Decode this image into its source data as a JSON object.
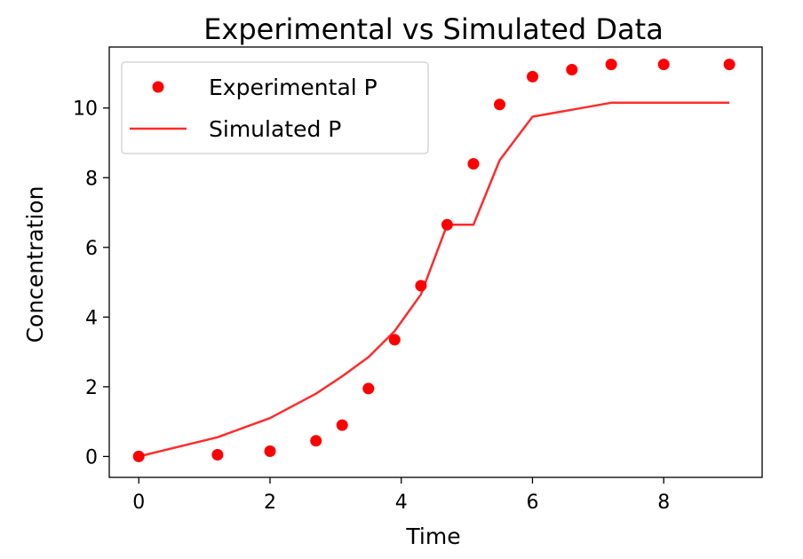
{
  "chart_data": {
    "type": "line",
    "title": "Experimental vs Simulated Data",
    "xlabel": "Time",
    "ylabel": "Concentration",
    "xlim": [
      -0.45,
      9.5
    ],
    "ylim": [
      -0.6,
      11.75
    ],
    "xticks": [
      0,
      2,
      4,
      6,
      8
    ],
    "yticks": [
      0,
      2,
      4,
      6,
      8,
      10
    ],
    "grid": false,
    "legend_position": "upper-left",
    "series": [
      {
        "name": "Experimental P",
        "kind": "scatter",
        "color": "#ff0000",
        "x": [
          0,
          1.2,
          2.0,
          2.7,
          3.1,
          3.5,
          3.9,
          4.3,
          4.7,
          5.1,
          5.5,
          6.0,
          6.6,
          7.2,
          8.0,
          9.0
        ],
        "y": [
          0.0,
          0.05,
          0.15,
          0.45,
          0.9,
          1.95,
          3.35,
          4.9,
          6.65,
          8.4,
          10.1,
          10.9,
          11.1,
          11.25,
          11.25,
          11.25
        ]
      },
      {
        "name": "Simulated P",
        "kind": "line",
        "color": "#ff2b2b",
        "x": [
          0,
          1.2,
          2.0,
          2.7,
          3.1,
          3.5,
          3.9,
          4.3,
          4.7,
          5.1,
          5.5,
          6.0,
          6.6,
          7.2,
          8.0,
          9.0
        ],
        "y": [
          0.0,
          0.55,
          1.1,
          1.8,
          2.3,
          2.85,
          3.6,
          4.65,
          6.65,
          6.65,
          8.5,
          9.75,
          9.95,
          10.15,
          10.15,
          10.15
        ]
      }
    ]
  }
}
